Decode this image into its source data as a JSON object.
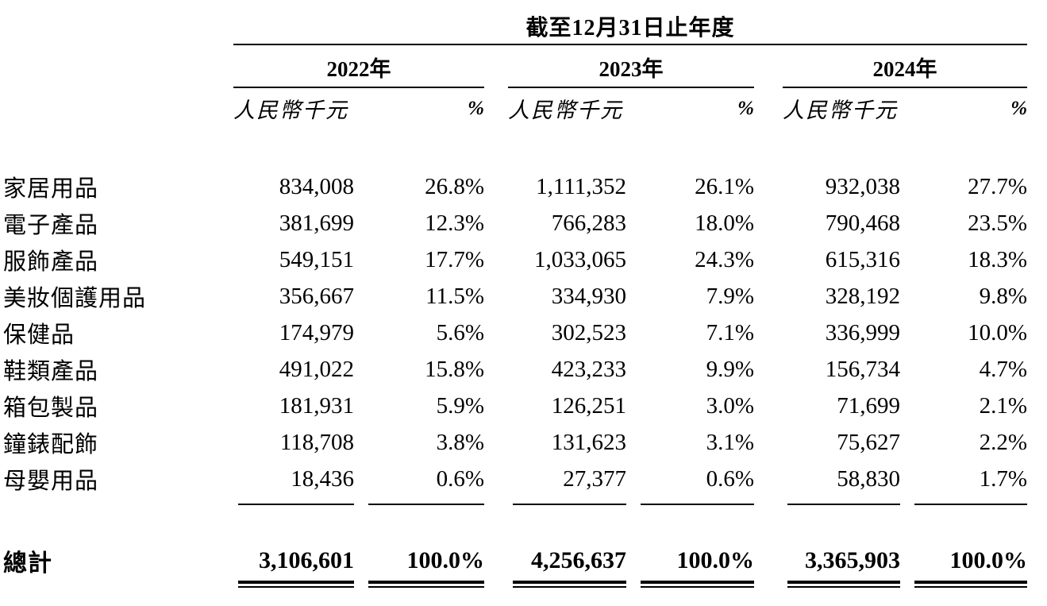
{
  "table": {
    "title": "截至12月31日止年度",
    "years": [
      "2022年",
      "2023年",
      "2024年"
    ],
    "col_headers": {
      "amount": "人民幣千元",
      "percent": "%"
    },
    "rows": [
      {
        "label": "家居用品",
        "values": [
          "834,008",
          "26.8%",
          "1,111,352",
          "26.1%",
          "932,038",
          "27.7%"
        ]
      },
      {
        "label": "電子產品",
        "values": [
          "381,699",
          "12.3%",
          "766,283",
          "18.0%",
          "790,468",
          "23.5%"
        ]
      },
      {
        "label": "服飾產品",
        "values": [
          "549,151",
          "17.7%",
          "1,033,065",
          "24.3%",
          "615,316",
          "18.3%"
        ]
      },
      {
        "label": "美妝個護用品",
        "values": [
          "356,667",
          "11.5%",
          "334,930",
          "7.9%",
          "328,192",
          "9.8%"
        ]
      },
      {
        "label": "保健品",
        "values": [
          "174,979",
          "5.6%",
          "302,523",
          "7.1%",
          "336,999",
          "10.0%"
        ]
      },
      {
        "label": "鞋類產品",
        "values": [
          "491,022",
          "15.8%",
          "423,233",
          "9.9%",
          "156,734",
          "4.7%"
        ]
      },
      {
        "label": "箱包製品",
        "values": [
          "181,931",
          "5.9%",
          "126,251",
          "3.0%",
          "71,699",
          "2.1%"
        ]
      },
      {
        "label": "鐘錶配飾",
        "values": [
          "118,708",
          "3.8%",
          "131,623",
          "3.1%",
          "75,627",
          "2.2%"
        ]
      },
      {
        "label": "母嬰用品",
        "values": [
          "18,436",
          "0.6%",
          "27,377",
          "0.6%",
          "58,830",
          "1.7%"
        ]
      }
    ],
    "total": {
      "label": "總計",
      "values": [
        "3,106,601",
        "100.0%",
        "4,256,637",
        "100.0%",
        "3,365,903",
        "100.0%"
      ]
    },
    "text_color": "#000000",
    "background_color": "#ffffff"
  }
}
